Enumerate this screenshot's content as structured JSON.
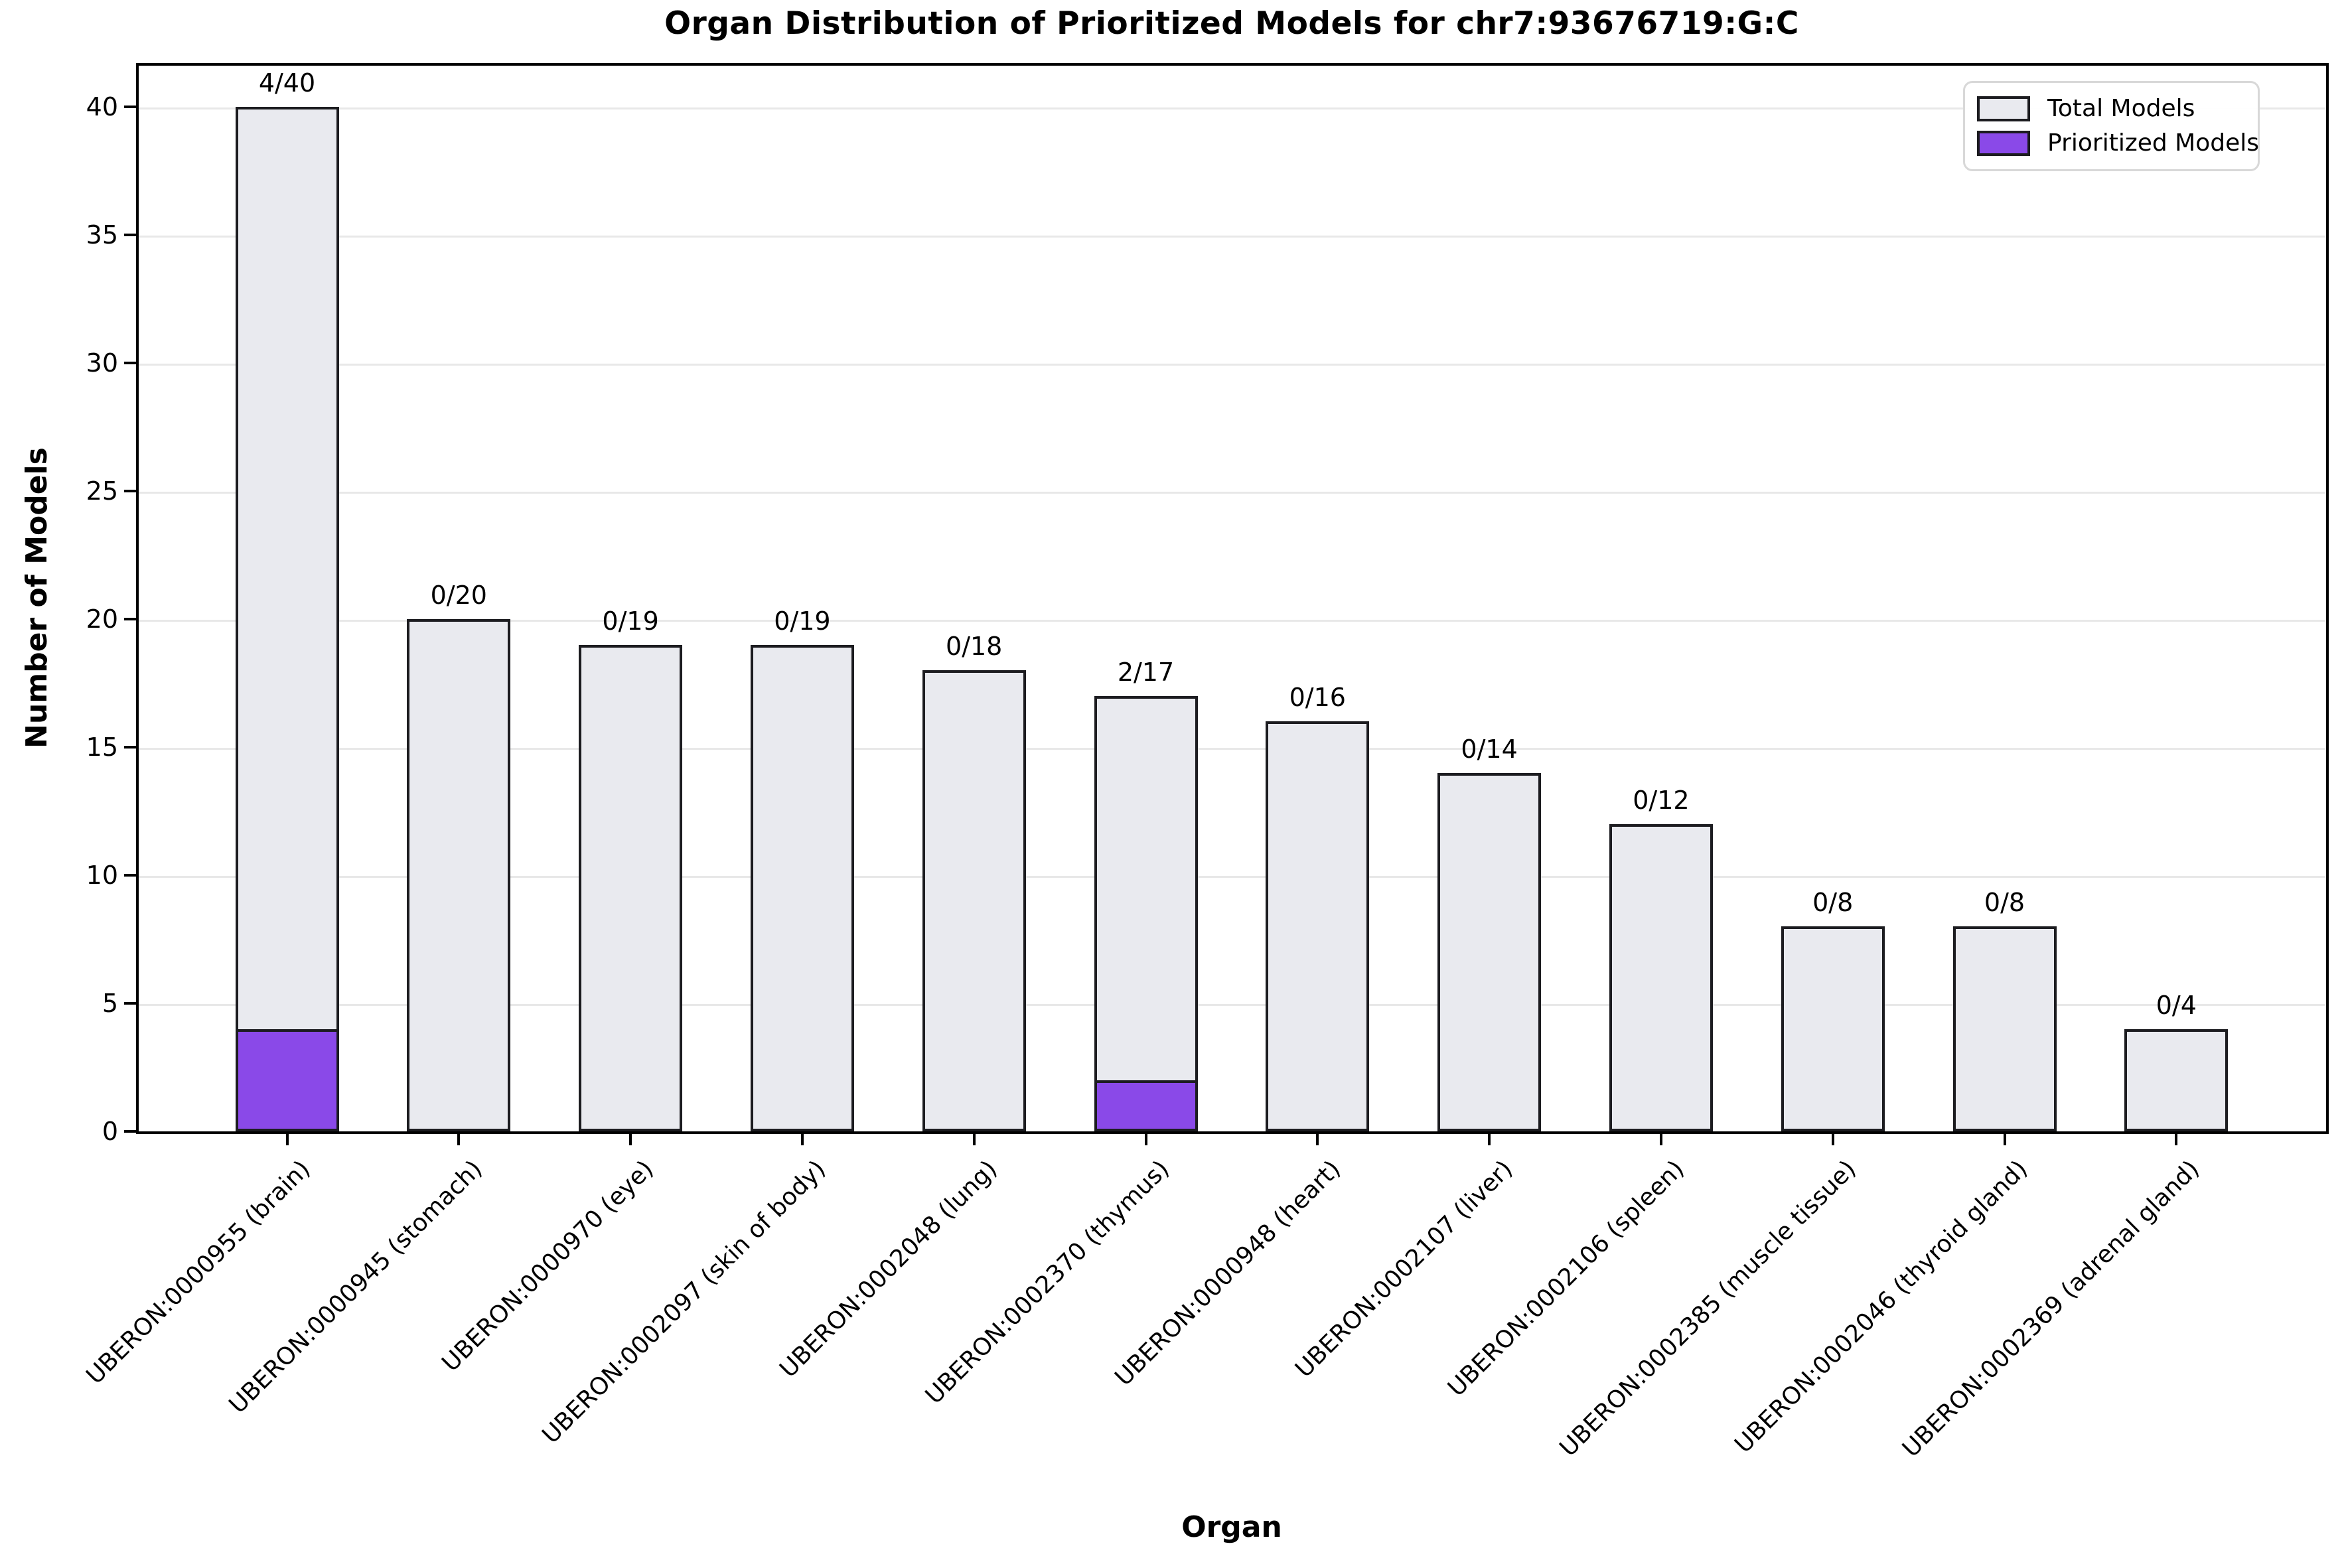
{
  "figure": {
    "title": "Organ Distribution of Prioritized Models for chr7:93676719:G:C",
    "xlabel": "Organ",
    "ylabel": "Number of Models"
  },
  "legend": {
    "items": [
      {
        "label": "Total Models",
        "color": "#e9eaef"
      },
      {
        "label": "Prioritized Models",
        "color": "#8a49e8"
      }
    ]
  },
  "colors": {
    "total_fill": "#e9eaef",
    "prioritized_fill": "#8a49e8",
    "bar_edge": "#1c1c20",
    "grid": "#e8e8e8",
    "axis": "#000000"
  },
  "chart_data": {
    "type": "bar",
    "title": "Organ Distribution of Prioritized Models for chr7:93676719:G:C",
    "xlabel": "Organ",
    "ylabel": "Number of Models",
    "categories": [
      "UBERON:0000955 (brain)",
      "UBERON:0000945 (stomach)",
      "UBERON:0000970 (eye)",
      "UBERON:0002097 (skin of body)",
      "UBERON:0002048 (lung)",
      "UBERON:0002370 (thymus)",
      "UBERON:0000948 (heart)",
      "UBERON:0002107 (liver)",
      "UBERON:0002106 (spleen)",
      "UBERON:0002385 (muscle tissue)",
      "UBERON:0002046 (thyroid gland)",
      "UBERON:0002369 (adrenal gland)"
    ],
    "series": [
      {
        "name": "Total Models",
        "values": [
          40,
          20,
          19,
          19,
          18,
          17,
          16,
          14,
          12,
          8,
          8,
          4
        ]
      },
      {
        "name": "Prioritized Models",
        "values": [
          4,
          0,
          0,
          0,
          0,
          2,
          0,
          0,
          0,
          0,
          0,
          0
        ]
      }
    ],
    "annotations": [
      "4/40",
      "0/20",
      "0/19",
      "0/19",
      "0/18",
      "2/17",
      "0/16",
      "0/14",
      "0/12",
      "0/8",
      "0/8",
      "0/4"
    ],
    "yticks": [
      0,
      5,
      10,
      15,
      20,
      25,
      30,
      35,
      40
    ],
    "ylim": [
      0,
      41.6
    ],
    "grid": true,
    "legend_position": "upper right",
    "bar_style": "overlaid"
  }
}
